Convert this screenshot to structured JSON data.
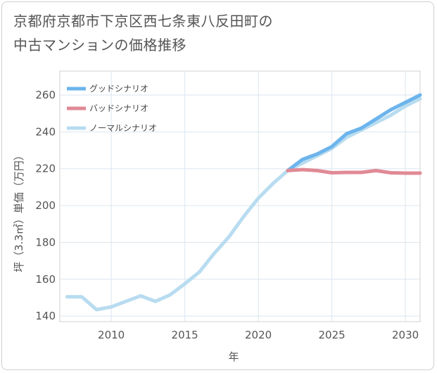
{
  "title_lines": [
    "京都府京都市下京区西七条東八反田町の",
    "中古マンションの価格推移"
  ],
  "chart_data": {
    "type": "line",
    "title": "京都府京都市下京区西七条東八反田町の中古マンションの価格推移",
    "xlabel": "年",
    "ylabel": "坪（3.3㎡）単価（万円）",
    "xlim": [
      2006.5,
      2031
    ],
    "ylim": [
      137,
      273
    ],
    "xticks": [
      2010,
      2015,
      2020,
      2025,
      2030
    ],
    "yticks": [
      140,
      160,
      180,
      200,
      220,
      240,
      260
    ],
    "grid": true,
    "legend_position": "top-left",
    "series": [
      {
        "name": "グッドシナリオ",
        "color": "#6cb4ec",
        "x": [
          2022,
          2023,
          2024,
          2025,
          2026,
          2027,
          2028,
          2029,
          2030,
          2031
        ],
        "values": [
          219,
          225,
          228,
          232,
          239,
          242,
          247,
          252,
          256,
          260
        ]
      },
      {
        "name": "バッドシナリオ",
        "color": "#e08a96",
        "x": [
          2022,
          2023,
          2024,
          2025,
          2026,
          2027,
          2028,
          2029,
          2030,
          2031
        ],
        "values": [
          219,
          219.5,
          219,
          217.8,
          218,
          218,
          219,
          217.8,
          217.6,
          217.6
        ]
      },
      {
        "name": "ノーマルシナリオ",
        "color": "#b8dcf0",
        "x": [
          2007,
          2008,
          2009,
          2010,
          2011,
          2012,
          2013,
          2014,
          2015,
          2016,
          2017,
          2018,
          2019,
          2020,
          2021,
          2022,
          2023,
          2024,
          2025,
          2026,
          2027,
          2028,
          2029,
          2030,
          2031
        ],
        "values": [
          150.5,
          150.5,
          143.5,
          145,
          148,
          151,
          148,
          151.5,
          157.5,
          164,
          174,
          183,
          194,
          204,
          212,
          219,
          223,
          227,
          231,
          237,
          241,
          245,
          249,
          254,
          258
        ]
      }
    ]
  }
}
